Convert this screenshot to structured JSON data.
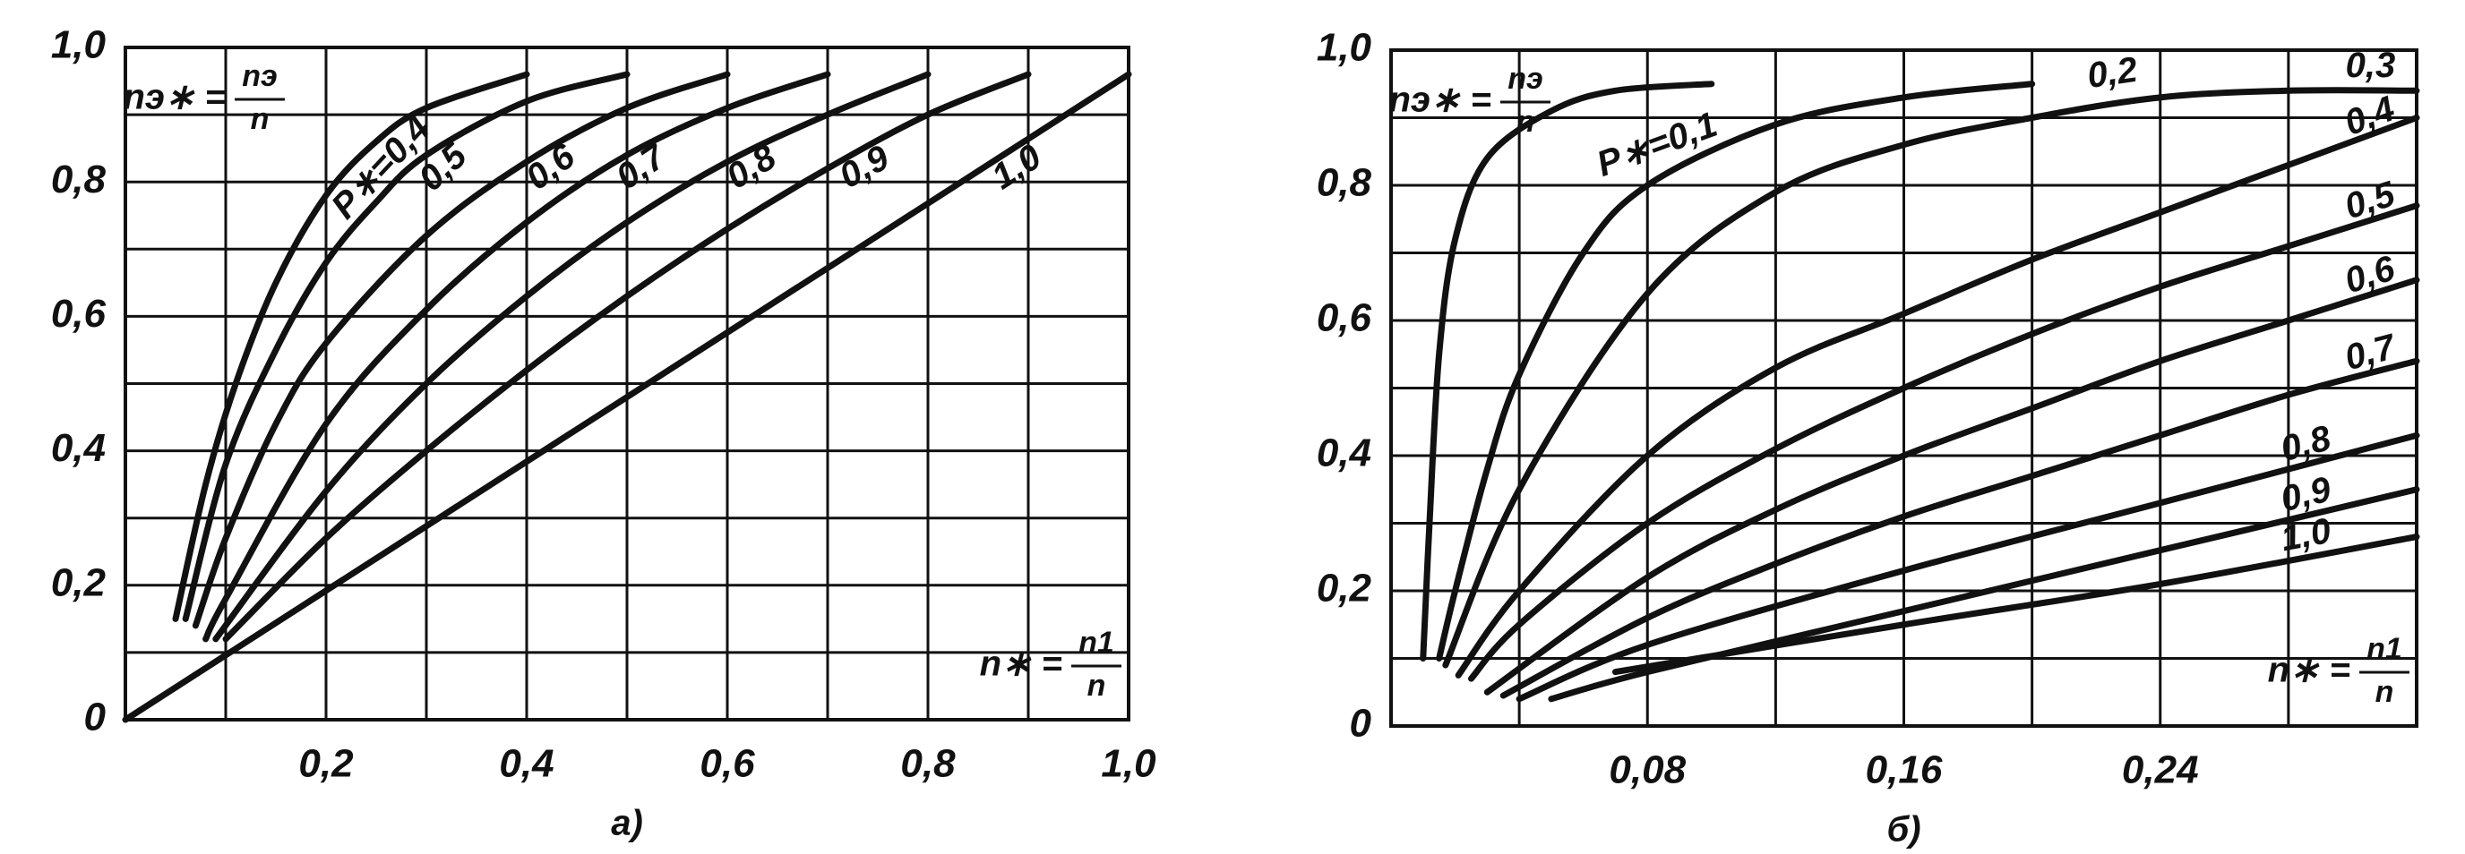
{
  "chart_data": [
    {
      "type": "line",
      "caption": "а)",
      "x_label": {
        "symbol": "n∗ =",
        "numerator": "n1",
        "denominator": "n"
      },
      "y_label": {
        "symbol": "nэ∗ =",
        "numerator": "nэ",
        "denominator": "n"
      },
      "xlim": [
        0,
        1.0
      ],
      "ylim": [
        0,
        1.0
      ],
      "xticks": [
        {
          "value": 0.2,
          "label": "0,2"
        },
        {
          "value": 0.4,
          "label": "0,4"
        },
        {
          "value": 0.6,
          "label": "0,6"
        },
        {
          "value": 0.8,
          "label": "0,8"
        },
        {
          "value": 1.0,
          "label": "1,0"
        }
      ],
      "yticks": [
        0,
        {
          "value": 0.2,
          "label": "0,2"
        },
        {
          "value": 0.4,
          "label": "0,4"
        },
        {
          "value": 0.6,
          "label": "0,6"
        },
        {
          "value": 0.8,
          "label": "0,8"
        },
        {
          "value": 1.0,
          "label": "1,0"
        }
      ],
      "minor_xticks": [
        0.1,
        0.3,
        0.5,
        0.7,
        0.9
      ],
      "minor_yticks": [
        0.1,
        0.3,
        0.5,
        0.7,
        0.9
      ],
      "grid": true,
      "series": [
        {
          "name": "P∗=0,4",
          "color": "#111111",
          "x": [
            0.05,
            0.08,
            0.11,
            0.15,
            0.2,
            0.25,
            0.3,
            0.4
          ],
          "values": [
            0.15,
            0.35,
            0.5,
            0.65,
            0.78,
            0.86,
            0.91,
            0.96
          ]
        },
        {
          "name": "0,5",
          "color": "#111111",
          "x": [
            0.06,
            0.1,
            0.15,
            0.2,
            0.25,
            0.3,
            0.4,
            0.5
          ],
          "values": [
            0.15,
            0.38,
            0.55,
            0.68,
            0.77,
            0.84,
            0.92,
            0.96
          ]
        },
        {
          "name": "0,6",
          "color": "#111111",
          "x": [
            0.07,
            0.1,
            0.15,
            0.2,
            0.3,
            0.4,
            0.5,
            0.6
          ],
          "values": [
            0.14,
            0.27,
            0.44,
            0.56,
            0.72,
            0.83,
            0.91,
            0.96
          ]
        },
        {
          "name": "0,7",
          "color": "#111111",
          "x": [
            0.08,
            0.1,
            0.2,
            0.3,
            0.4,
            0.5,
            0.6,
            0.7
          ],
          "values": [
            0.12,
            0.18,
            0.44,
            0.61,
            0.74,
            0.84,
            0.91,
            0.96
          ]
        },
        {
          "name": "0,8",
          "color": "#111111",
          "x": [
            0.09,
            0.2,
            0.3,
            0.4,
            0.5,
            0.6,
            0.7,
            0.8
          ],
          "values": [
            0.12,
            0.34,
            0.5,
            0.63,
            0.74,
            0.83,
            0.9,
            0.96
          ]
        },
        {
          "name": "0,9",
          "color": "#111111",
          "x": [
            0.1,
            0.2,
            0.3,
            0.4,
            0.5,
            0.6,
            0.7,
            0.8,
            0.9
          ],
          "values": [
            0.12,
            0.27,
            0.4,
            0.52,
            0.63,
            0.73,
            0.82,
            0.9,
            0.96
          ]
        },
        {
          "name": "1,0",
          "color": "#111111",
          "x": [
            0,
            0.5,
            1.0
          ],
          "values": [
            0,
            0.48,
            0.96
          ]
        }
      ]
    },
    {
      "type": "line",
      "caption": "б)",
      "x_label": {
        "symbol": "n∗ =",
        "numerator": "n1",
        "denominator": "n"
      },
      "y_label": {
        "symbol": "nэ∗ =",
        "numerator": "nэ",
        "denominator": "n"
      },
      "xlim": [
        0,
        0.32
      ],
      "ylim": [
        0,
        1.0
      ],
      "xticks": [
        {
          "value": 0.08,
          "label": "0,08"
        },
        {
          "value": 0.16,
          "label": "0,16"
        },
        {
          "value": 0.24,
          "label": "0,24"
        }
      ],
      "yticks": [
        0,
        {
          "value": 0.2,
          "label": "0,2"
        },
        {
          "value": 0.4,
          "label": "0,4"
        },
        {
          "value": 0.6,
          "label": "0,6"
        },
        {
          "value": 0.8,
          "label": "0,8"
        },
        {
          "value": 1.0,
          "label": "1,0"
        }
      ],
      "minor_xticks": [
        0.04,
        0.12,
        0.2,
        0.28,
        0.32
      ],
      "minor_yticks": [
        0.1,
        0.3,
        0.5,
        0.7,
        0.9
      ],
      "grid": true,
      "series": [
        {
          "name": "P∗=0,1",
          "color": "#111111",
          "x": [
            0.01,
            0.012,
            0.015,
            0.02,
            0.03,
            0.05,
            0.07,
            0.1
          ],
          "values": [
            0.1,
            0.3,
            0.55,
            0.72,
            0.84,
            0.91,
            0.94,
            0.95
          ]
        },
        {
          "name": "0,2",
          "color": "#111111",
          "x": [
            0.015,
            0.02,
            0.03,
            0.04,
            0.06,
            0.08,
            0.12,
            0.16,
            0.2
          ],
          "values": [
            0.1,
            0.2,
            0.38,
            0.52,
            0.7,
            0.8,
            0.89,
            0.93,
            0.95
          ]
        },
        {
          "name": "0,3",
          "color": "#111111",
          "x": [
            0.017,
            0.04,
            0.08,
            0.12,
            0.16,
            0.2,
            0.24,
            0.28,
            0.32
          ],
          "values": [
            0.09,
            0.35,
            0.64,
            0.79,
            0.86,
            0.9,
            0.93,
            0.94,
            0.94
          ]
        },
        {
          "name": "0,4",
          "color": "#111111",
          "x": [
            0.021,
            0.04,
            0.08,
            0.12,
            0.16,
            0.2,
            0.24,
            0.28,
            0.32
          ],
          "values": [
            0.075,
            0.2,
            0.4,
            0.53,
            0.61,
            0.69,
            0.76,
            0.83,
            0.9
          ]
        },
        {
          "name": "0,5",
          "color": "#111111",
          "x": [
            0.025,
            0.04,
            0.08,
            0.12,
            0.16,
            0.2,
            0.24,
            0.28,
            0.32
          ],
          "values": [
            0.07,
            0.15,
            0.3,
            0.41,
            0.5,
            0.58,
            0.65,
            0.71,
            0.77
          ]
        },
        {
          "name": "0,6",
          "color": "#111111",
          "x": [
            0.03,
            0.08,
            0.12,
            0.16,
            0.2,
            0.24,
            0.28,
            0.32
          ],
          "values": [
            0.05,
            0.22,
            0.32,
            0.4,
            0.47,
            0.54,
            0.6,
            0.66
          ]
        },
        {
          "name": "0,7",
          "color": "#111111",
          "x": [
            0.035,
            0.08,
            0.12,
            0.16,
            0.2,
            0.24,
            0.28,
            0.32
          ],
          "values": [
            0.045,
            0.16,
            0.24,
            0.31,
            0.37,
            0.43,
            0.49,
            0.54
          ]
        },
        {
          "name": "0,8",
          "color": "#111111",
          "x": [
            0.04,
            0.08,
            0.16,
            0.24,
            0.32
          ],
          "values": [
            0.04,
            0.12,
            0.23,
            0.33,
            0.43
          ]
        },
        {
          "name": "0,9",
          "color": "#111111",
          "x": [
            0.05,
            0.08,
            0.16,
            0.24,
            0.32
          ],
          "values": [
            0.04,
            0.08,
            0.17,
            0.26,
            0.35
          ]
        },
        {
          "name": "1,0",
          "color": "#111111",
          "x": [
            0.07,
            0.16,
            0.24,
            0.32
          ],
          "values": [
            0.08,
            0.15,
            0.21,
            0.28
          ]
        }
      ]
    }
  ]
}
